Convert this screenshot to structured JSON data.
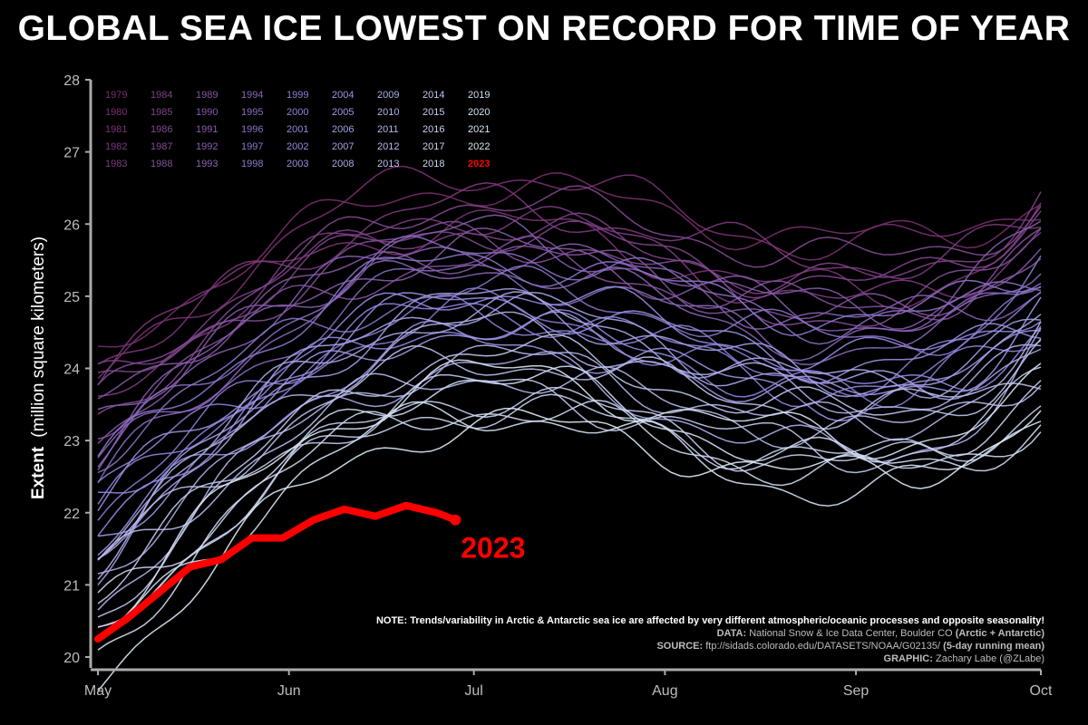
{
  "title": "GLOBAL SEA ICE LOWEST ON RECORD FOR TIME OF YEAR",
  "chart_data": {
    "type": "line",
    "ylabel_bold": "Extent",
    "ylabel_rest": "(million square kilometers)",
    "ylim": [
      20,
      28
    ],
    "yticks": [
      20,
      21,
      22,
      23,
      24,
      25,
      26,
      27,
      28
    ],
    "x_months": [
      "May",
      "Jun",
      "Jul",
      "Aug",
      "Sep",
      "Oct"
    ],
    "x_month_start_days": [
      0,
      31,
      61,
      92,
      123,
      153
    ],
    "grid": false,
    "legend_placement": "top-left",
    "legend_years": [
      1979,
      1980,
      1981,
      1982,
      1983,
      1984,
      1985,
      1986,
      1987,
      1988,
      1989,
      1990,
      1991,
      1992,
      1993,
      1994,
      1995,
      1996,
      1997,
      1998,
      1999,
      2000,
      2001,
      2002,
      2003,
      2004,
      2005,
      2006,
      2007,
      2008,
      2009,
      2010,
      2011,
      2012,
      2013,
      2014,
      2015,
      2016,
      2017,
      2018,
      2019,
      2020,
      2021,
      2022,
      2023
    ],
    "highlight": {
      "name": "2023",
      "label": "2023",
      "color": "#ff0000",
      "days": [
        0,
        5,
        10,
        15,
        20,
        25,
        30,
        35,
        40,
        45,
        50,
        55,
        58
      ],
      "values": [
        20.25,
        20.55,
        20.9,
        21.25,
        21.35,
        21.65,
        21.65,
        21.9,
        22.05,
        21.95,
        22.1,
        22.0,
        21.9
      ]
    },
    "historical_range": {
      "bottom_day0": 20.0,
      "top_day0": 24.2,
      "peak_upper": 27.5,
      "end_upper": 26.9,
      "end_lower": 23.0
    }
  },
  "notes": {
    "note": "NOTE: Trends/variability in Arctic & Antarctic sea ice are affected by very different atmospheric/oceanic processes and opposite seasonality!",
    "data_label": "DATA:",
    "data_text": "National Snow & Ice Data Center, Boulder CO",
    "data_bold": "(Arctic + Antarctic)",
    "source_label": "SOURCE:",
    "source_text": "ftp://sidads.colorado.edu/DATASETS/NOAA/G02135/",
    "source_bold": "(5-day running mean)",
    "graphic_label": "GRAPHIC:",
    "graphic_text": "Zachary Labe (@ZLabe)"
  },
  "colors": {
    "old": "#7a2c6e",
    "mid": "#8f86e0",
    "new": "#dff0f6",
    "highlight": "#ff0000",
    "axis": "#aaaaaa"
  }
}
